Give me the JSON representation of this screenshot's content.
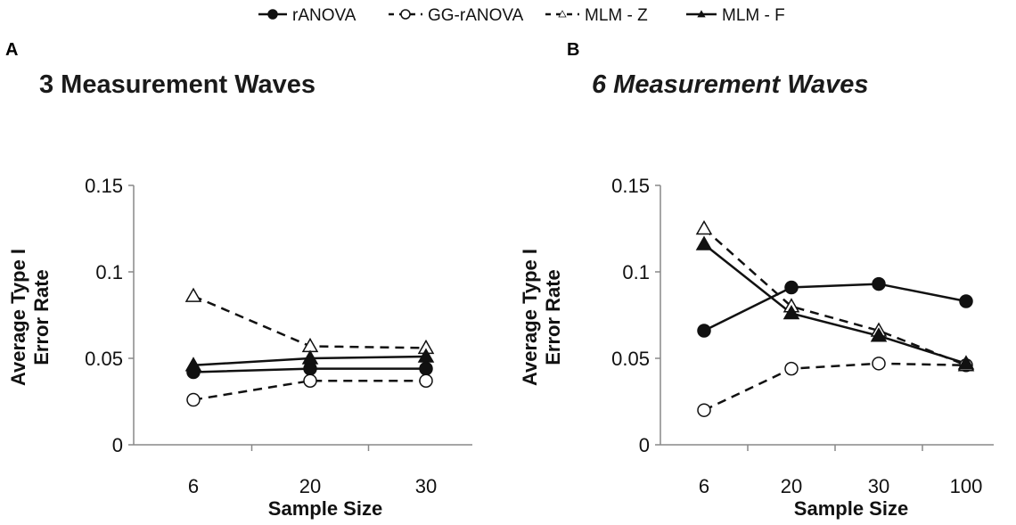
{
  "legend": [
    {
      "name": "rANOVA",
      "marker": "circle-filled",
      "dash": "solid"
    },
    {
      "name": "GG-rANOVA",
      "marker": "circle-open",
      "dash": "dashed"
    },
    {
      "name": "MLM - Z",
      "marker": "triangle-open",
      "dash": "dashed"
    },
    {
      "name": "MLM - F",
      "marker": "triangle-filled",
      "dash": "solid"
    }
  ],
  "chart_data": [
    {
      "panel_label": "A",
      "type": "line",
      "title": "3 Measurement Waves",
      "title_style": "bold",
      "xlabel": "Sample Size",
      "ylabel_lines": [
        "Average Type I",
        "Error Rate"
      ],
      "categories": [
        "6",
        "20",
        "30"
      ],
      "ylim": [
        0,
        0.15
      ],
      "yticks": [
        0,
        0.05,
        0.1,
        0.15
      ],
      "ytick_labels": [
        "0",
        "0.05",
        "0.1",
        "0.15"
      ],
      "series": [
        {
          "name": "rANOVA",
          "values": [
            0.042,
            0.044,
            0.044
          ]
        },
        {
          "name": "GG-rANOVA",
          "values": [
            0.026,
            0.037,
            0.037
          ]
        },
        {
          "name": "MLM - Z",
          "values": [
            0.086,
            0.057,
            0.056
          ]
        },
        {
          "name": "MLM - F",
          "values": [
            0.046,
            0.05,
            0.051
          ]
        }
      ]
    },
    {
      "panel_label": "B",
      "type": "line",
      "title": "6 Measurement Waves",
      "title_style": "bold-italic",
      "xlabel": "Sample Size",
      "ylabel_lines": [
        "Average Type I",
        "Error Rate"
      ],
      "categories": [
        "6",
        "20",
        "30",
        "100"
      ],
      "ylim": [
        0,
        0.15
      ],
      "yticks": [
        0,
        0.05,
        0.1,
        0.15
      ],
      "ytick_labels": [
        "0",
        "0.05",
        "0.1",
        "0.15"
      ],
      "series": [
        {
          "name": "rANOVA",
          "values": [
            0.066,
            0.091,
            0.093,
            0.083
          ]
        },
        {
          "name": "GG-rANOVA",
          "values": [
            0.02,
            0.044,
            0.047,
            0.046
          ]
        },
        {
          "name": "MLM - Z",
          "values": [
            0.125,
            0.08,
            0.066,
            0.046
          ]
        },
        {
          "name": "MLM - F",
          "values": [
            0.116,
            0.076,
            0.063,
            0.047
          ]
        }
      ]
    }
  ]
}
